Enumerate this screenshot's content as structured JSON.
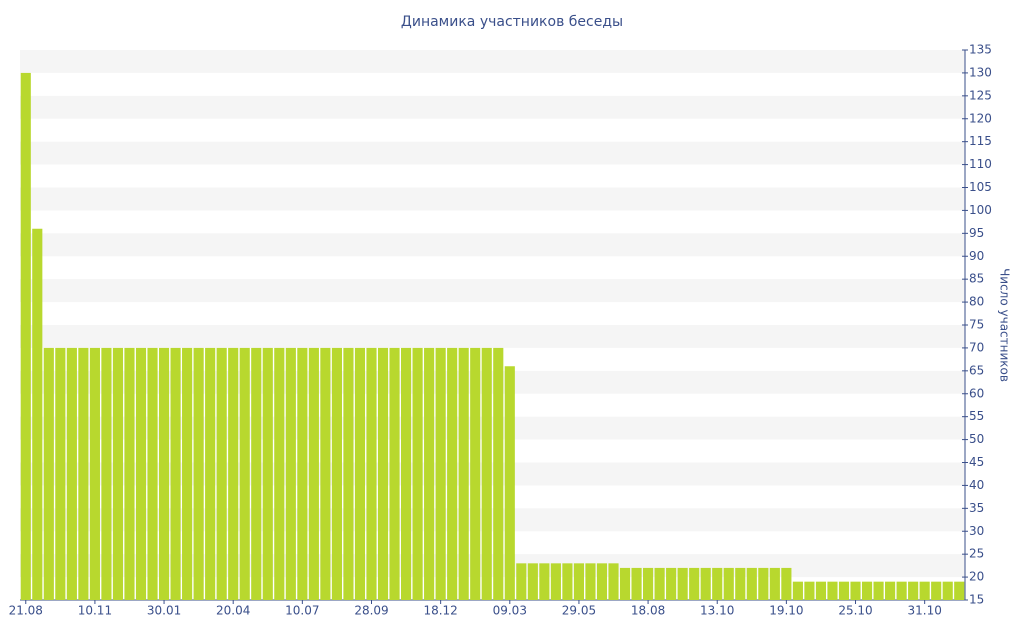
{
  "chart_data": {
    "type": "bar",
    "title": "Динамика участников беседы",
    "y_label": "Число участников",
    "categories": [
      "21.08",
      null,
      null,
      null,
      null,
      null,
      "10.11",
      null,
      null,
      null,
      null,
      null,
      "30.01",
      null,
      null,
      null,
      null,
      null,
      "20.04",
      null,
      null,
      null,
      null,
      null,
      "10.07",
      null,
      null,
      null,
      null,
      null,
      "28.09",
      null,
      null,
      null,
      null,
      null,
      "18.12",
      null,
      null,
      null,
      null,
      null,
      "09.03",
      null,
      null,
      null,
      null,
      null,
      "29.05",
      null,
      null,
      null,
      null,
      null,
      "18.08",
      null,
      null,
      null,
      null,
      null,
      "13.10",
      null,
      null,
      null,
      null,
      null,
      "19.10",
      null,
      null,
      null,
      null,
      null,
      "25.10",
      null,
      null,
      null,
      null,
      null,
      "31.10",
      null,
      null,
      null
    ],
    "values": [
      130,
      96,
      70,
      70,
      70,
      70,
      70,
      70,
      70,
      70,
      70,
      70,
      70,
      70,
      70,
      70,
      70,
      70,
      70,
      70,
      70,
      70,
      70,
      70,
      70,
      70,
      70,
      70,
      70,
      70,
      70,
      70,
      70,
      70,
      70,
      70,
      70,
      70,
      70,
      70,
      70,
      70,
      66,
      23,
      23,
      23,
      23,
      23,
      23,
      23,
      23,
      23,
      22,
      22,
      22,
      22,
      22,
      22,
      22,
      22,
      22,
      22,
      22,
      22,
      22,
      22,
      22,
      19,
      19,
      19,
      19,
      19,
      19,
      19,
      19,
      19,
      19,
      19,
      19,
      19,
      19,
      19
    ],
    "color": "#b8d82e",
    "ylim": [
      15,
      135
    ],
    "yticks": [
      15,
      20,
      25,
      30,
      35,
      40,
      45,
      50,
      55,
      60,
      65,
      70,
      75,
      80,
      85,
      90,
      95,
      100,
      105,
      110,
      115,
      120,
      125,
      130,
      135
    ],
    "y_axis_side": "right",
    "banded_grid": true
  }
}
